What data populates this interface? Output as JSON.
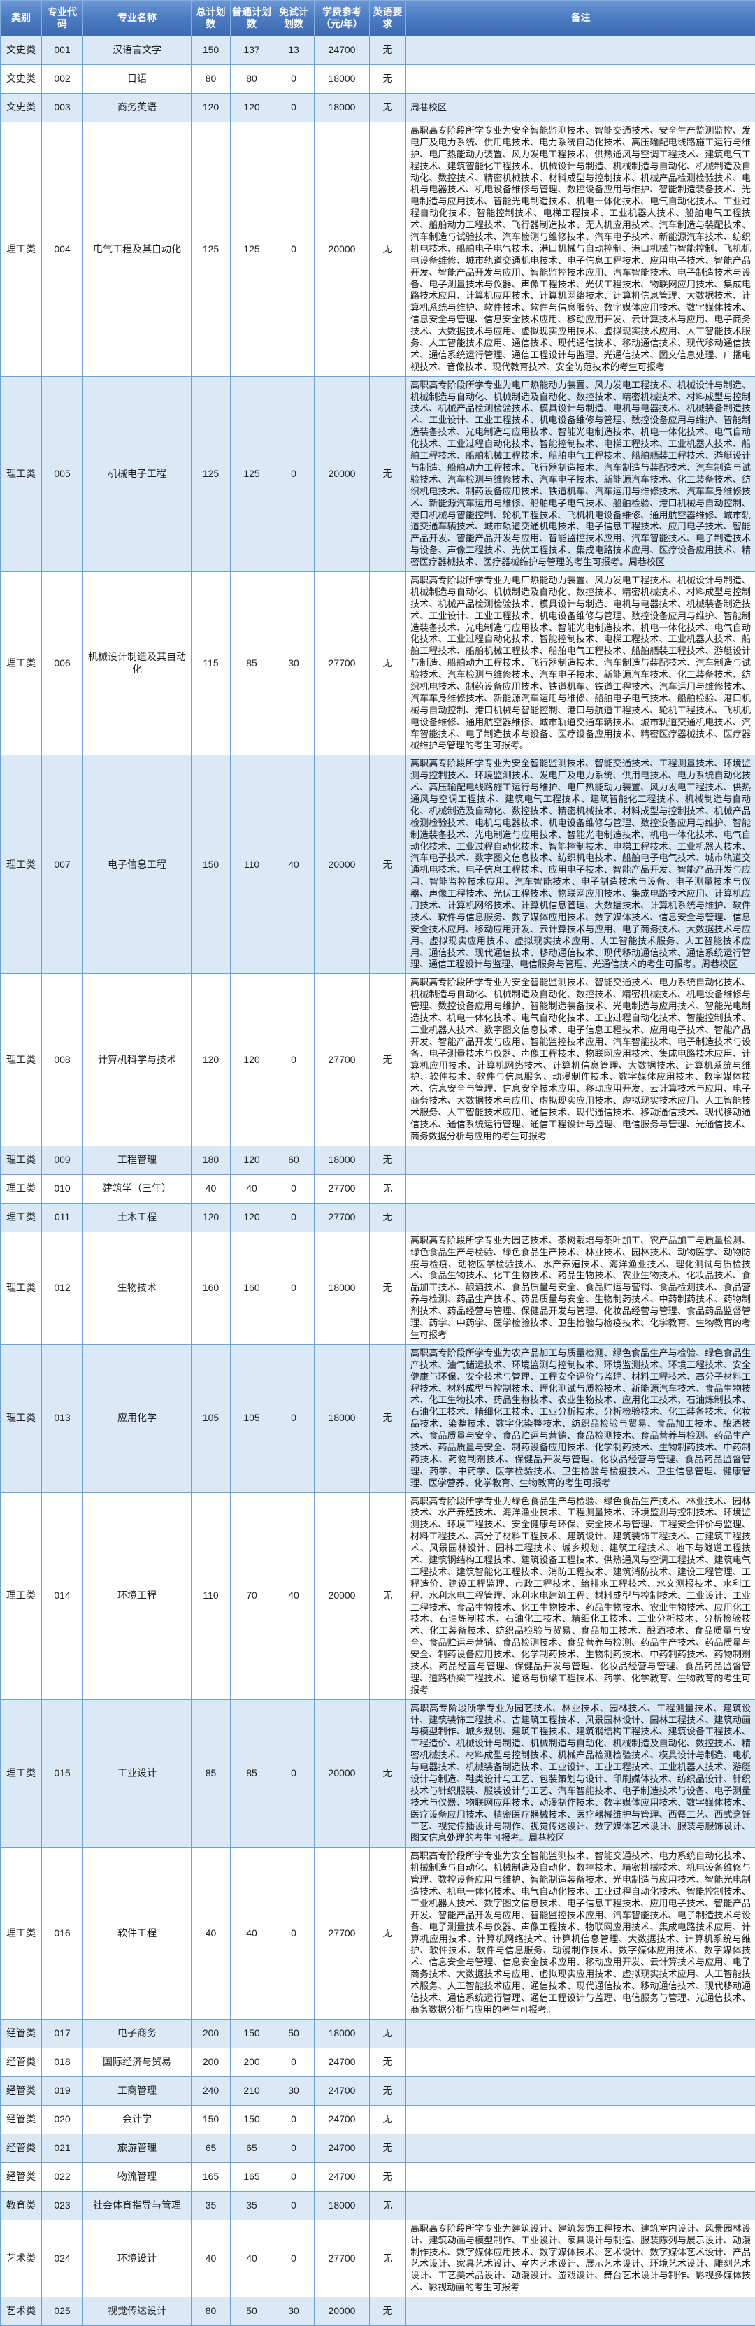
{
  "colors": {
    "header_bg_top": "#6b95d3",
    "header_bg_bottom": "#3c6ab2",
    "header_text": "#ffffff",
    "row_alt_bg": "#dbe9f7",
    "row_bg": "#ffffff",
    "grid_line": "#6fa0d6",
    "body_text": "#1e1e1e"
  },
  "table": {
    "headers": [
      "类别",
      "专业代码",
      "专业名称",
      "总计划数",
      "普通计划数",
      "免试计划数",
      "学费参考（元/年）",
      "英语要求",
      "备注"
    ],
    "rows": [
      {
        "category": "文史类",
        "code": "001",
        "name": "汉语言文学",
        "total": "150",
        "regular": "137",
        "exempt": "13",
        "tuition": "24700",
        "english": "无",
        "remark": ""
      },
      {
        "category": "文史类",
        "code": "002",
        "name": "日语",
        "total": "80",
        "regular": "80",
        "exempt": "0",
        "tuition": "18000",
        "english": "无",
        "remark": ""
      },
      {
        "category": "文史类",
        "code": "003",
        "name": "商务英语",
        "total": "120",
        "regular": "120",
        "exempt": "0",
        "tuition": "18000",
        "english": "无",
        "remark": "周巷校区"
      },
      {
        "category": "理工类",
        "code": "004",
        "name": "电气工程及其自动化",
        "total": "125",
        "regular": "125",
        "exempt": "0",
        "tuition": "20000",
        "english": "无",
        "remark": "高职高专阶段所学专业为安全智能监测技术、智能交通技术、安全生产监测监控、发电厂及电力系统、供用电技术、电力系统自动化技术、高压输配电线路施工运行与维护、电厂热能动力装置、风力发电工程技术、供热通风与空调工程技术、建筑电气工程技术、建筑智能化工程技术、机械设计与制造、机械制造与自动化、机械制造及自动化、数控技术、精密机械技术、材料成型与控制技术、机械产品检测检验技术、电机与电器技术、机电设备维修与管理、数控设备应用与维护、智能制造装备技术、光电制造与应用技术、智能光电制造技术、机电一体化技术、电气自动化技术、工业过程自动化技术、智能控制技术、电梯工程技术、工业机器人技术、船舶电气工程技术、船舶动力工程技术、飞行器制造技术、无人机应用技术、汽车制造与装配技术、汽车制造与试验技术、汽车检测与维修技术、汽车电子技术、新能源汽车技术、纺织机电技术、船舶电子电气技术、港口机械与自动控制、港口机械与智能控制、飞机机电设备维修、城市轨道交通机电技术、电子信息工程技术、应用电子技术、智能产品开发、智能产品开发与应用、智能监控技术应用、汽车智能技术、电子制造技术与设备、电子测量技术与仪器、声像工程技术、光伏工程技术、物联网应用技术、集成电路技术应用、计算机应用技术、计算机网络技术、计算机信息管理、大数据技术、计算机系统与维护、软件技术、软件与信息服务、数字媒体应用技术、数字媒体技术、信息安全与管理、信息安全技术应用、移动应用开发、云计算技术与应用、电子商务技术、大数据技术与应用、虚拟现实应用技术、虚拟现实技术应用、人工智能技术服务、人工智能技术应用、通信技术、现代通信技术、移动通信技术、现代移动通信技术、通信系统运行管理、通信工程设计与监理、光通信技术、图文信息处理、广播电视技术、音像技术、现代教育技术、安全防范技术的考生可报考"
      },
      {
        "category": "理工类",
        "code": "005",
        "name": "机械电子工程",
        "total": "125",
        "regular": "125",
        "exempt": "0",
        "tuition": "20000",
        "english": "无",
        "remark": "高职高专阶段所学专业为电厂热能动力装置、风力发电工程技术、机械设计与制造、机械制造与自动化、机械制造及自动化、数控技术、精密机械技术、材料成型与控制技术、机械产品检测检验技术、模具设计与制造、电机与电器技术、机械装备制造技术、工业设计、工业工程技术、机电设备维修与管理、数控设备应用与维护、智能制造装备技术、光电制造与应用技术、智能光电制造技术、机电一体化技术、电气自动化技术、工业过程自动化技术、智能控制技术、电梯工程技术、工业机器人技术、船舶工程技术、船舶机械工程技术、船舶电气工程技术、船舶舾装工程技术、游艇设计与制造、船舶动力工程技术、飞行器制造技术、汽车制造与装配技术、汽车制造与试验技术、汽车检测与维修技术、汽车电子技术、新能源汽车技术、化工装备技术、纺织机电技术、制药设备应用技术、铁道机车、汽车运用与维修技术、汽车车身维修技术、新能源汽车运用与维修、船舶电子电气技术、船舶检验、港口机械与自动控制、港口机械与智能控制、轮机工程技术、飞机机电设备维修、通用航空器维修、城市轨道交通车辆技术、城市轨道交通机电技术、电子信息工程技术、应用电子技术、智能产品开发、智能产品开发与应用、智能监控技术应用、汽车智能技术、电子制造技术与设备、声像工程技术、光伏工程技术、集成电路技术应用、医疗设备应用技术、精密医疗器械技术、医疗器械维护与管理的考生可报考。周巷校区"
      },
      {
        "category": "理工类",
        "code": "006",
        "name": "机械设计制造及其自动化",
        "total": "115",
        "regular": "85",
        "exempt": "30",
        "tuition": "27700",
        "english": "无",
        "remark": "高职高专阶段所学专业为电厂热能动力装置、风力发电工程技术、机械设计与制造、机械制造与自动化、机械制造及自动化、数控技术、精密机械技术、材料成型与控制技术、机械产品检测检验技术、模具设计与制造、电机与电器技术、机械装备制造技术、工业设计、工业工程技术、机电设备维修与管理、数控设备应用与维护、智能制造装备技术、光电制造与应用技术、智能光电制造技术、机电一体化技术、电气自动化技术、工业过程自动化技术、智能控制技术、电梯工程技术、工业机器人技术、船舶工程技术、船舶机械工程技术、船舶电气工程技术、船舶舾装工程技术、游艇设计与制造、船舶动力工程技术、飞行器制造技术、汽车制造与装配技术、汽车制造与试验技术、汽车检测与维修技术、汽车电子技术、新能源汽车技术、化工装备技术、纺织机电技术、制药设备应用技术、铁道机车、铁道工程技术、汽车运用与维修技术、汽车车身维修技术、新能源汽车运用与维修、船舶电子电气技术、船舶检验、港口机械与自动控制、港口机械与智能控制、港口与航道工程技术、轮机工程技术、飞机机电设备维修、通用航空器维修、城市轨道交通车辆技术、城市轨道交通机电技术、汽车智能技术、电子制造技术与设备、医疗设备应用技术、精密医疗器械技术、医疗器械维护与管理的考生可报考。"
      },
      {
        "category": "理工类",
        "code": "007",
        "name": "电子信息工程",
        "total": "150",
        "regular": "110",
        "exempt": "40",
        "tuition": "20000",
        "english": "无",
        "remark": "高职高专阶段所学专业为安全智能监测技术、智能交通技术、工程测量技术、环境监测与控制技术、环境监测技术、发电厂及电力系统、供用电技术、电力系统自动化技术、高压输配电线路施工运行与维护、电厂热能动力装置、风力发电工程技术、供热通风与空调工程技术、建筑电气工程技术、建筑智能化工程技术、机械制造与自动化、机械制造及自动化、数控技术、精密机械技术、材料成型与控制技术、机械产品检测检验技术、电机与电器技术、机电设备维修与管理、数控设备应用与维护、智能制造装备技术、光电制造与应用技术、智能光电制造技术、机电一体化技术、电气自动化技术、工业过程自动化技术、智能控制技术、电梯工程技术、工业机器人技术、汽车电子技术、数字图文信息技术、纺织机电技术、船舶电子电气技术、城市轨道交通机电技术、电子信息工程技术、应用电子技术、智能产品开发、智能产品开发与应用、智能监控技术应用、汽车智能技术、电子制造技术与设备、电子测量技术与仪器、声像工程技术、光伏工程技术、物联网应用技术、集成电路技术应用、计算机应用技术、计算机网络技术、计算机信息管理、大数据技术、计算机系统与维护、软件技术、软件与信息服务、数字媒体应用技术、数字媒体技术、信息安全与管理、信息安全技术应用、移动应用开发、云计算技术与应用、电子商务技术、大数据技术与应用、虚拟现实应用技术、虚拟现实技术应用、人工智能技术服务、人工智能技术应用、通信技术、现代通信技术、移动通信技术、现代移动通信技术、通信系统运行管理、通信工程设计与监理、电信服务与管理、光通信技术的考生可报考。周巷校区"
      },
      {
        "category": "理工类",
        "code": "008",
        "name": "计算机科学与技术",
        "total": "120",
        "regular": "120",
        "exempt": "0",
        "tuition": "27700",
        "english": "无",
        "remark": "高职高专阶段所学专业为安全智能监测技术、智能交通技术、电力系统自动化技术、机械制造与自动化、机械制造及自动化、数控技术、精密机械技术、机电设备维修与管理、数控设备应用与维护、智能制造装备技术、光电制造与应用技术、智能光电制造技术、机电一体化技术、电气自动化技术、工业过程自动化技术、智能控制技术、工业机器人技术、数字图文信息技术、电子信息工程技术、应用电子技术、智能产品开发、智能产品开发与应用、智能监控技术应用、汽车智能技术、电子制造技术与设备、电子测量技术与仪器、声像工程技术、物联网应用技术、集成电路技术应用、计算机应用技术、计算机网络技术、计算机信息管理、大数据技术、计算机系统与维护、软件技术、软件与信息服务、动漫制作技术、数字媒体应用技术、数字媒体技术、信息安全与管理、信息安全技术应用、移动应用开发、云计算技术与应用、电子商务技术、大数据技术与应用、虚拟现实应用技术、虚拟现实技术应用、人工智能技术服务、人工智能技术应用、通信技术、现代通信技术、移动通信技术、现代移动通信技术、通信系统运行管理、通信工程设计与监理、电信服务与管理、光通信技术、商务数据分析与应用的考生可报考"
      },
      {
        "category": "理工类",
        "code": "009",
        "name": "工程管理",
        "total": "180",
        "regular": "120",
        "exempt": "60",
        "tuition": "18000",
        "english": "无",
        "remark": ""
      },
      {
        "category": "理工类",
        "code": "010",
        "name": "建筑学（三年）",
        "total": "40",
        "regular": "40",
        "exempt": "0",
        "tuition": "27700",
        "english": "无",
        "remark": ""
      },
      {
        "category": "理工类",
        "code": "011",
        "name": "土木工程",
        "total": "120",
        "regular": "120",
        "exempt": "0",
        "tuition": "27700",
        "english": "无",
        "remark": ""
      },
      {
        "category": "理工类",
        "code": "012",
        "name": "生物技术",
        "total": "160",
        "regular": "160",
        "exempt": "0",
        "tuition": "18000",
        "english": "无",
        "remark": "高职高专阶段所学专业为园艺技术、茶树栽培与茶叶加工、农产品加工与质量检测、绿色食品生产与检验、绿色食品生产技术、林业技术、园林技术、动物医学、动物防疫与检疫、动物医学检验技术、水产养殖技术、海洋渔业技术、理化测试与质检技术、食品生物技术、化工生物技术、药品生物技术、农业生物技术、化妆品技术、食品加工技术、酿酒技术、食品质量与安全、食品贮运与营销、食品检测技术、食品营养与检测、药品生产技术、药品质量与安全、生物制药技术、中药制药技术、药物制剂技术、药品经营与管理、保健品开发与管理、化妆品经营与管理、食品药品监督管理、药学、中药学、医学检验技术、卫生检验与检疫技术、化学教育、生物教育的考生可报考"
      },
      {
        "category": "理工类",
        "code": "013",
        "name": "应用化学",
        "total": "105",
        "regular": "105",
        "exempt": "0",
        "tuition": "18000",
        "english": "无",
        "remark": "高职高专阶段所学专业为农产品加工与质量检测、绿色食品生产与检验、绿色食品生产技术、油气储运技术、环境监测与控制技术、环境监测技术、环境工程技术、安全健康与环保、安全技术与管理、工程安全评价与监理、材料工程技术、高分子材料工程技术、材料成型与控制技术、理化测试与质检技术、新能源汽车技术、食品生物技术、化工生物技术、药品生物技术、农业生物技术、应用化工技术、石油炼制技术、石油化工技术、精细化工技术、工业分析技术、分析检验技术、化工装备技术、化妆品技术、染整技术、数字化染整技术、纺织品检验与贸易、食品加工技术、酿酒技术、食品质量与安全、食品贮运与营销、食品检测技术、食品营养与检测、药品生产技术、药品质量与安全、制药设备应用技术、化学制药技术、生物制药技术、中药制药技术、药物制剂技术、保健品开发与管理、化妆品经营与管理、食品药品监督管理、药学、中药学、医学检验技术、卫生检验与检疫技术、卫生信息管理、健康管理、医学营养、化学教育、生物教育的考生可报考"
      },
      {
        "category": "理工类",
        "code": "014",
        "name": "环境工程",
        "total": "110",
        "regular": "70",
        "exempt": "40",
        "tuition": "20000",
        "english": "无",
        "remark": "高职高专阶段所学专业为绿色食品生产与检验、绿色食品生产技术、林业技术、园林技术、水产养殖技术、海洋渔业技术、工程测量技术、环境监测与控制技术、环境监测技术、环境工程技术、安全健康与环保、安全技术与管理、工程安全评价与监理、材料工程技术、高分子材料工程技术、建筑设计、建筑装饰工程技术、古建筑工程技术、风景园林设计、园林工程技术、城乡规划、建筑工程技术、地下与隧道工程技术、建筑钢结构工程技术、建筑设备工程技术、供热通风与空调工程技术、建筑电气工程技术、建筑智能化工程技术、消防工程技术、建筑消防技术、建设工程管理、工程造价、建设工程监理、市政工程技术、给排水工程技术、水文测报技术、水利工程、水利水电工程管理、水利水电建筑工程、材料成型与控制技术、工业设计、工业工程技术、食品生物技术、化工生物技术、药品生物技术、农业生物技术、应用化工技术、石油炼制技术、石油化工技术、精细化工技术、工业分析技术、分析检验技术、化工装备技术、纺织品检验与贸易、食品加工技术、酿酒技术、食品质量与安全、食品贮运与营销、食品检测技术、食品营养与检测、药品生产技术、药品质量与安全、制药设备应用技术、化学制药技术、生物制药技术、中药制药技术、药物制剂技术、药品经营与管理、保健品开发与管理、化妆品经营与管理、食品药品监督管理、道路桥梁工程技术、道路与桥梁工程技术、药学、化学教育、生物教育的考生可报考"
      },
      {
        "category": "理工类",
        "code": "015",
        "name": "工业设计",
        "total": "85",
        "regular": "85",
        "exempt": "0",
        "tuition": "20000",
        "english": "无",
        "remark": "高职高专阶段所学专业为园艺技术、林业技术、园林技术、工程测量技术、建筑设计、建筑装饰工程技术、古建筑工程技术、风景园林设计、园林工程技术、建筑动画与模型制作、城乡规划、建筑工程技术、建筑钢结构工程技术、建筑设备工程技术、工程造价、机械设计与制造、机械制造与自动化、机械制造及自动化、数控技术、精密机械技术、材料成型与控制技术、机械产品检测检验技术、模具设计与制造、电机与电器技术、机械装备制造技术、工业设计、工业工程技术、工业机器人技术、游艇设计与制造、鞋类设计与工艺、包装策划与设计、印刷媒体技术、纺织品设计、针织技术与针织服装、服装设计与工艺、汽车智能技术、电子制造技术与设备、电子测量技术与仪器、物联网应用技术、动漫制作技术、数字媒体应用技术、数字媒体技术、医疗设备应用技术、精密医疗器械技术、医疗器械维护与管理、西餐工艺、西式烹饪工艺、视觉传播设计与制作、视觉传达设计、数字媒体艺术设计、服装与服饰设计、图文信息处理的考生可报考。周巷校区"
      },
      {
        "category": "理工类",
        "code": "016",
        "name": "软件工程",
        "total": "40",
        "regular": "40",
        "exempt": "0",
        "tuition": "27700",
        "english": "无",
        "remark": "高职高专阶段所学专业为安全智能监测技术、智能交通技术、电力系统自动化技术、机械制造与自动化、机械制造及自动化、数控技术、精密机械技术、机电设备维修与管理、数控设备应用与维护、智能制造装备技术、光电制造与应用技术、智能光电制造技术、机电一体化技术、电气自动化技术、工业过程自动化技术、智能控制技术、工业机器人技术、数字图文信息技术、电子信息工程技术、应用电子技术、智能产品开发、智能产品开发与应用、智能监控技术应用、汽车智能技术、电子制造技术与设备、电子测量技术与仪器、声像工程技术、物联网应用技术、集成电路技术应用、计算机应用技术、计算机网络技术、计算机信息管理、大数据技术、计算机系统与维护、软件技术、软件与信息服务、动漫制作技术、数字媒体应用技术、数字媒体技术、信息安全与管理、信息安全技术应用、移动应用开发、云计算技术与应用、电子商务技术、大数据技术与应用、虚拟现实应用技术、虚拟现实技术应用、人工智能技术服务、人工智能技术应用、通信技术、现代通信技术、移动通信技术、现代移动通信技术、通信系统运行管理、通信工程设计与监理、电信服务与管理、光通信技术、商务数据分析与应用的考生可报考。"
      },
      {
        "category": "经管类",
        "code": "017",
        "name": "电子商务",
        "total": "200",
        "regular": "150",
        "exempt": "50",
        "tuition": "18000",
        "english": "无",
        "remark": ""
      },
      {
        "category": "经管类",
        "code": "018",
        "name": "国际经济与贸易",
        "total": "200",
        "regular": "200",
        "exempt": "0",
        "tuition": "24700",
        "english": "无",
        "remark": ""
      },
      {
        "category": "经管类",
        "code": "019",
        "name": "工商管理",
        "total": "240",
        "regular": "210",
        "exempt": "30",
        "tuition": "24700",
        "english": "无",
        "remark": ""
      },
      {
        "category": "经管类",
        "code": "020",
        "name": "会计学",
        "total": "150",
        "regular": "150",
        "exempt": "0",
        "tuition": "24700",
        "english": "无",
        "remark": ""
      },
      {
        "category": "经管类",
        "code": "021",
        "name": "旅游管理",
        "total": "65",
        "regular": "65",
        "exempt": "0",
        "tuition": "24700",
        "english": "无",
        "remark": ""
      },
      {
        "category": "经管类",
        "code": "022",
        "name": "物流管理",
        "total": "165",
        "regular": "165",
        "exempt": "0",
        "tuition": "24700",
        "english": "无",
        "remark": ""
      },
      {
        "category": "教育类",
        "code": "023",
        "name": "社会体育指导与管理",
        "total": "35",
        "regular": "35",
        "exempt": "0",
        "tuition": "18000",
        "english": "无",
        "remark": ""
      },
      {
        "category": "艺术类",
        "code": "024",
        "name": "环境设计",
        "total": "40",
        "regular": "40",
        "exempt": "0",
        "tuition": "27700",
        "english": "无",
        "remark": "高职高专阶段所学专业为建筑设计、建筑装饰工程技术、建筑室内设计、风景园林设计、建筑动画与模型制作、工业设计、家具设计与制造、服装陈列与展示设计、动漫制作技术、数字媒体应用技术、数字媒体技术、艺术设计、数字媒体艺术设计、产品艺术设计、家具艺术设计、室内艺术设计、展示艺术设计、环境艺术设计、雕刻艺术设计、工艺美术品设计、动漫设计、游戏设计、舞台艺术设计与制作、影视多媒体技术、影视动画的考生可报考"
      },
      {
        "category": "艺术类",
        "code": "025",
        "name": "视觉传达设计",
        "total": "80",
        "regular": "50",
        "exempt": "30",
        "tuition": "20000",
        "english": "无",
        "remark": ""
      }
    ]
  }
}
